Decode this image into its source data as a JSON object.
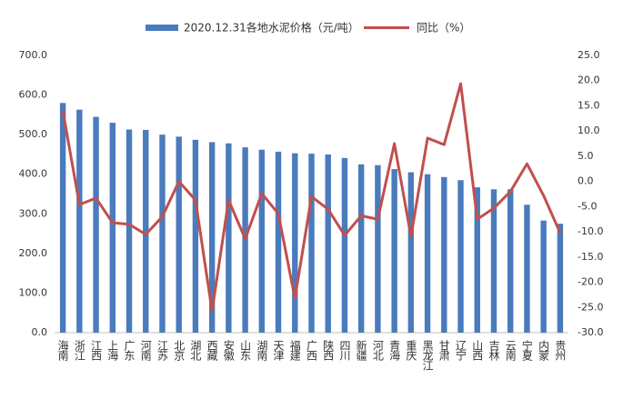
{
  "chart_data": {
    "type": "bar-line",
    "categories": [
      "海南",
      "浙江",
      "江西",
      "上海",
      "广东",
      "河南",
      "江苏",
      "北京",
      "湖北",
      "西藏",
      "安徽",
      "山东",
      "湖南",
      "天津",
      "福建",
      "广西",
      "陕西",
      "四川",
      "新疆",
      "河北",
      "青海",
      "重庆",
      "黑龙江",
      "甘肃",
      "辽宁",
      "山西",
      "吉林",
      "云南",
      "宁夏",
      "内蒙",
      "贵州"
    ],
    "series": [
      {
        "name": "2020.12.31各地水泥价格（元/吨）",
        "type": "bar",
        "color": "#4a7bbd",
        "values": [
          580,
          563,
          545,
          530,
          513,
          512,
          500,
          495,
          487,
          481,
          478,
          468,
          462,
          457,
          453,
          452,
          450,
          441,
          425,
          423,
          413,
          405,
          400,
          393,
          385,
          367,
          362,
          362,
          323,
          283,
          275
        ]
      },
      {
        "name": "同比（%）",
        "type": "line",
        "axis": "y2",
        "color": "#c0504d",
        "values": [
          14,
          -4.6,
          -3.3,
          -8.2,
          -8.5,
          -10.5,
          -7,
          0,
          -3.7,
          -25.7,
          -3.7,
          -11.4,
          -2.4,
          -6.4,
          -23.2,
          -3,
          -5.5,
          -10.7,
          -6.8,
          -7.5,
          7.5,
          -10.9,
          8.6,
          7.3,
          19.4,
          -7.5,
          -5.3,
          -2,
          3.5,
          -2.8,
          -10.2
        ]
      }
    ],
    "ylim": [
      0,
      700
    ],
    "yticks": [
      {
        "value": 0,
        "label": "0.0"
      },
      {
        "value": 100,
        "label": "100.0"
      },
      {
        "value": 200,
        "label": "200.0"
      },
      {
        "value": 300,
        "label": "300.0"
      },
      {
        "value": 400,
        "label": "400.0"
      },
      {
        "value": 500,
        "label": "500.0"
      },
      {
        "value": 600,
        "label": "600.0"
      },
      {
        "value": 700,
        "label": "700.0"
      }
    ],
    "y2lim": [
      -30,
      25
    ],
    "y2ticks": [
      {
        "value": -30,
        "label": "-30.0"
      },
      {
        "value": -25,
        "label": "-25.0"
      },
      {
        "value": -20,
        "label": "-20.0"
      },
      {
        "value": -15,
        "label": "-15.0"
      },
      {
        "value": -10,
        "label": "-10.0"
      },
      {
        "value": -5,
        "label": "-5.0"
      },
      {
        "value": 0,
        "label": "0.0"
      },
      {
        "value": 5,
        "label": "5.0"
      },
      {
        "value": 10,
        "label": "10.0"
      },
      {
        "value": 15,
        "label": "15.0"
      },
      {
        "value": 20,
        "label": "20.0"
      },
      {
        "value": 25,
        "label": "25.0"
      }
    ]
  }
}
